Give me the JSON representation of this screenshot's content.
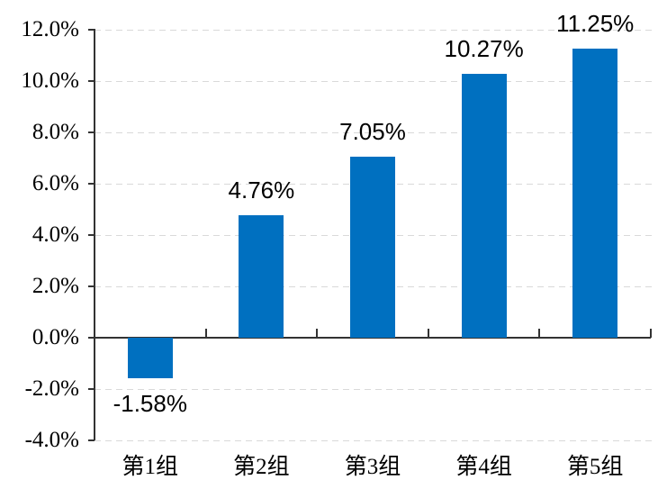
{
  "chart_data": {
    "type": "bar",
    "title": "",
    "xlabel": "",
    "ylabel": "",
    "categories": [
      "第1组",
      "第2组",
      "第3组",
      "第4组",
      "第5组"
    ],
    "values": [
      -1.58,
      4.76,
      7.05,
      10.27,
      11.25
    ],
    "data_labels": [
      "-1.58%",
      "4.76%",
      "7.05%",
      "10.27%",
      "11.25%"
    ],
    "y_tick_values": [
      12,
      10,
      8,
      6,
      4,
      2,
      0,
      -2,
      -4
    ],
    "y_tick_labels": [
      "12.0%",
      "10.0%",
      "8.0%",
      "6.0%",
      "4.0%",
      "2.0%",
      "0.0%",
      "-2.0%",
      "-4.0%"
    ],
    "ylim": [
      -4,
      12
    ],
    "grid": true,
    "legend": false,
    "bar_color": "#0070C0",
    "gridline_color": "#d9d9d9",
    "axis_color": "#333333",
    "label_color": "#000000"
  }
}
